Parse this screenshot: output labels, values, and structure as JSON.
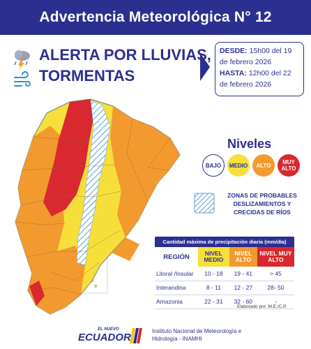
{
  "header": {
    "title": "Advertencia Meteorológica N° 12"
  },
  "alert": {
    "line1": "ALERTA POR LLUVIAS,",
    "line2": "TORMENTAS",
    "icons": [
      "thunderstorm-cloud-icon",
      "wind-icon"
    ]
  },
  "dates": {
    "desde_label": "DESDE:",
    "desde_value": "15h00 del 19 de febrero 2026",
    "hasta_label": "HASTA:",
    "hasta_value": "12h00 del 22 de febrero 2026"
  },
  "niveles": {
    "title": "Niveles",
    "bajo": "BAJO",
    "medio": "MEDIO",
    "alto": "ALTO",
    "muy_alto": "MUY ALTO"
  },
  "colors": {
    "brand": "#2b2f8f",
    "bajo": "#ffffff",
    "medio": "#f6df3a",
    "alto": "#f29a2e",
    "muy_alto": "#d9282f"
  },
  "zonas": {
    "text": "ZONAS DE PROBABLES DESLIZAMIENTOS Y CRECIDAS DE RÍOS"
  },
  "table": {
    "caption": "Cantidad máxima de precipitación diaria (mm/día)",
    "headers": [
      "REGIÓN",
      "NIVEL MEDIO",
      "NIVEL ALTO",
      "NIVEL MUY ALTO"
    ],
    "rows": [
      [
        "Litoral /Insular",
        "10 - 18",
        "19 - 41",
        "> 45"
      ],
      [
        "Interandina",
        "8 - 11",
        "12 - 27",
        "28- 50"
      ],
      [
        "Amazonia",
        "22 - 31",
        "32 - 60",
        "-"
      ]
    ]
  },
  "elaborado": "Elaborado por: M.E./C.P.",
  "footer": {
    "logo_small": "EL NUEVO",
    "logo_big": "ECUADOR",
    "institution_line1": "Instituto Nacional de Meteorología e",
    "institution_line2": "Hidrología - INAMHI"
  }
}
